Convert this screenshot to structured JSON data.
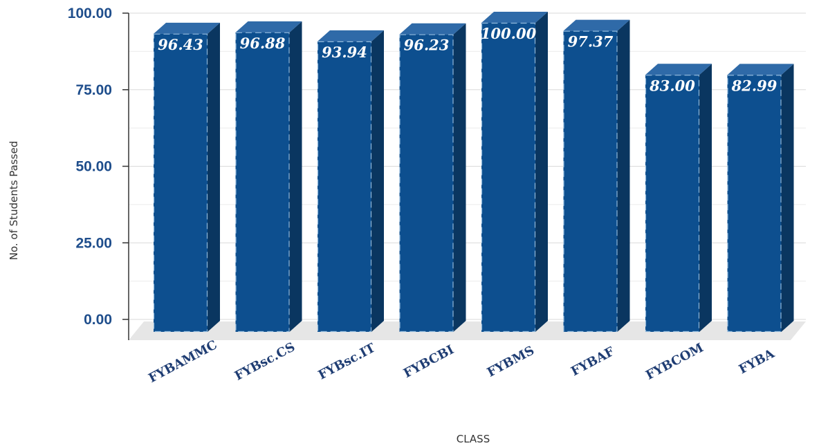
{
  "colors": {
    "bar_front": "#0d4f8f",
    "bar_side": "#0a3660",
    "bar_top": "#2f6aa8",
    "tick_label": "#1f4e8c",
    "category_label": "#1f3d73",
    "floor": "#e6e6e6"
  },
  "chart_data": {
    "type": "bar",
    "style": "3d-column",
    "categories": [
      "FYBAMMC",
      "FYBsc.CS",
      "FYBsc.IT",
      "FYBCBI",
      "FYBMS",
      "FYBAF",
      "FYBCOM",
      "FYBA"
    ],
    "values": [
      96.43,
      96.88,
      93.94,
      96.23,
      100.0,
      97.37,
      83.0,
      82.99
    ],
    "data_labels": [
      "96.43",
      "96.88",
      "93.94",
      "96.23",
      "100.00",
      "97.37",
      "83.00",
      "82.99"
    ],
    "title": "",
    "xlabel": "CLASS",
    "ylabel": "No. of Students Passed",
    "ylim": [
      0,
      100
    ],
    "yticks": [
      0,
      25,
      50,
      75,
      100
    ],
    "ytick_labels": [
      "0.00",
      "25.00",
      "50.00",
      "75.00",
      "100.00"
    ],
    "grid": true,
    "legend": "none"
  }
}
